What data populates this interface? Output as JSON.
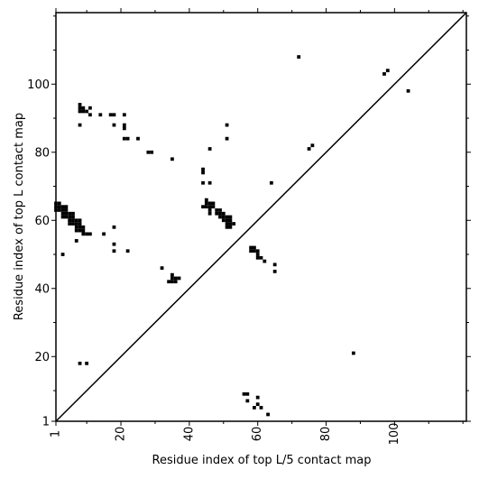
{
  "chart_data": {
    "type": "scatter",
    "xlabel": "Residue index of top L/5 contact map",
    "ylabel": "Residue index of top L contact map",
    "xlim": [
      1,
      121
    ],
    "ylim": [
      1,
      121
    ],
    "xticks": [
      "1",
      "20",
      "40",
      "60",
      "80",
      "100"
    ],
    "yticks": [
      "1",
      "20",
      "40",
      "60",
      "80",
      "100"
    ],
    "xtick_values": [
      1,
      20,
      40,
      60,
      80,
      100
    ],
    "ytick_values": [
      1,
      20,
      40,
      60,
      80,
      100
    ],
    "minor_tick_step": 10,
    "diagonal": true,
    "grid": false,
    "marker_color": "#000000",
    "series": [
      {
        "points": [
          [
            1,
            63
          ],
          [
            1,
            64
          ],
          [
            1,
            65
          ],
          [
            2,
            63
          ],
          [
            2,
            64
          ],
          [
            2,
            65
          ],
          [
            3,
            61
          ],
          [
            3,
            62
          ],
          [
            3,
            63
          ],
          [
            3,
            64
          ],
          [
            4,
            61
          ],
          [
            4,
            62
          ],
          [
            4,
            63
          ],
          [
            4,
            64
          ],
          [
            5,
            59
          ],
          [
            5,
            60
          ],
          [
            5,
            61
          ],
          [
            5,
            62
          ],
          [
            6,
            59
          ],
          [
            6,
            60
          ],
          [
            6,
            61
          ],
          [
            6,
            62
          ],
          [
            7,
            57
          ],
          [
            7,
            58
          ],
          [
            7,
            59
          ],
          [
            7,
            60
          ],
          [
            8,
            57
          ],
          [
            8,
            58
          ],
          [
            8,
            59
          ],
          [
            8,
            60
          ],
          [
            9,
            56
          ],
          [
            9,
            57
          ],
          [
            9,
            58
          ],
          [
            10,
            56
          ],
          [
            11,
            56
          ],
          [
            3,
            50
          ],
          [
            7,
            54
          ],
          [
            15,
            56
          ],
          [
            18,
            58
          ],
          [
            18,
            53
          ],
          [
            18,
            51
          ],
          [
            22,
            51
          ],
          [
            8,
            94
          ],
          [
            8,
            93
          ],
          [
            8,
            92
          ],
          [
            9,
            93
          ],
          [
            9,
            92
          ],
          [
            10,
            92
          ],
          [
            11,
            93
          ],
          [
            11,
            91
          ],
          [
            14,
            91
          ],
          [
            17,
            91
          ],
          [
            18,
            91
          ],
          [
            21,
            91
          ],
          [
            8,
            88
          ],
          [
            18,
            88
          ],
          [
            21,
            88
          ],
          [
            21,
            87
          ],
          [
            21,
            84
          ],
          [
            22,
            84
          ],
          [
            25,
            84
          ],
          [
            28,
            80
          ],
          [
            29,
            80
          ],
          [
            35,
            78
          ],
          [
            8,
            18
          ],
          [
            10,
            18
          ],
          [
            32,
            46
          ],
          [
            34,
            42
          ],
          [
            35,
            42
          ],
          [
            35,
            43
          ],
          [
            35,
            44
          ],
          [
            36,
            42
          ],
          [
            36,
            43
          ],
          [
            37,
            43
          ],
          [
            44,
            75
          ],
          [
            44,
            74
          ],
          [
            44,
            71
          ],
          [
            46,
            71
          ],
          [
            46,
            81
          ],
          [
            51,
            88
          ],
          [
            51,
            84
          ],
          [
            64,
            71
          ],
          [
            72,
            108
          ],
          [
            44,
            64
          ],
          [
            45,
            64
          ],
          [
            45,
            65
          ],
          [
            45,
            66
          ],
          [
            46,
            63
          ],
          [
            46,
            64
          ],
          [
            46,
            65
          ],
          [
            47,
            64
          ],
          [
            47,
            65
          ],
          [
            46,
            62
          ],
          [
            48,
            62
          ],
          [
            48,
            63
          ],
          [
            49,
            61
          ],
          [
            49,
            62
          ],
          [
            49,
            63
          ],
          [
            50,
            60
          ],
          [
            50,
            61
          ],
          [
            50,
            62
          ],
          [
            51,
            60
          ],
          [
            51,
            61
          ],
          [
            51,
            59
          ],
          [
            51,
            58
          ],
          [
            52,
            59
          ],
          [
            52,
            60
          ],
          [
            52,
            61
          ],
          [
            52,
            58
          ],
          [
            53,
            59
          ],
          [
            58,
            51
          ],
          [
            58,
            52
          ],
          [
            59,
            51
          ],
          [
            59,
            52
          ],
          [
            60,
            50
          ],
          [
            60,
            51
          ],
          [
            60,
            49
          ],
          [
            61,
            49
          ],
          [
            62,
            48
          ],
          [
            65,
            47
          ],
          [
            65,
            45
          ],
          [
            56,
            9
          ],
          [
            57,
            9
          ],
          [
            57,
            7
          ],
          [
            59,
            5
          ],
          [
            60,
            6
          ],
          [
            60,
            8
          ],
          [
            61,
            5
          ],
          [
            63,
            3
          ],
          [
            75,
            81
          ],
          [
            76,
            82
          ],
          [
            88,
            21
          ],
          [
            97,
            103
          ],
          [
            98,
            104
          ],
          [
            104,
            98
          ]
        ]
      }
    ]
  }
}
